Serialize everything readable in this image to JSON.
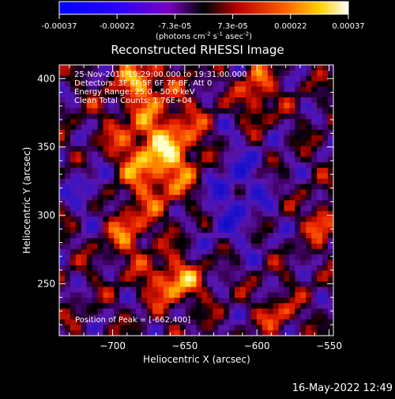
{
  "colorbar": {
    "ticks": [
      "-0.00037",
      "-0.00022",
      "-7.3e-05",
      "7.3e-05",
      "0.00022",
      "0.00037"
    ],
    "unit_pre": "(photons cm",
    "unit_exp1": "-2",
    "unit_mid": " s",
    "unit_exp2": "-1",
    "unit_post": " asec",
    "unit_exp3": "-2",
    "unit_end": ")"
  },
  "chart_data": {
    "type": "heatmap",
    "title": "Reconstructed RHESSI Image",
    "xlabel": "Heliocentric X (arcsec)",
    "ylabel": "Heliocentric Y (arcsec)",
    "xlim": [
      -737,
      -547
    ],
    "ylim": [
      212,
      410
    ],
    "x_ticks": [
      -700,
      -650,
      -600,
      -550
    ],
    "y_ticks": [
      250,
      300,
      350,
      400
    ],
    "x_tick_labels": [
      "−700",
      "−650",
      "−600",
      "−550"
    ],
    "y_tick_labels": [
      "250",
      "300",
      "350",
      "400"
    ],
    "value_range": [
      -0.00037,
      0.00037
    ],
    "colormap": "rainbow-blue-red-yellow-white",
    "peak": [
      -662,
      400
    ],
    "annotations": [
      "25-Nov-2011 19:29:00.000 to 19:31:00.000",
      "Detectors: 3F 4F 5F 6F 7F 8F, Att 0",
      "Energy Range: 25.0 - 50.0 keV",
      "Clean    Total Counts: 1.76E+04"
    ],
    "peak_label": "Position of Peak = [-662,400]"
  },
  "timestamp": "16-May-2022 12:49"
}
